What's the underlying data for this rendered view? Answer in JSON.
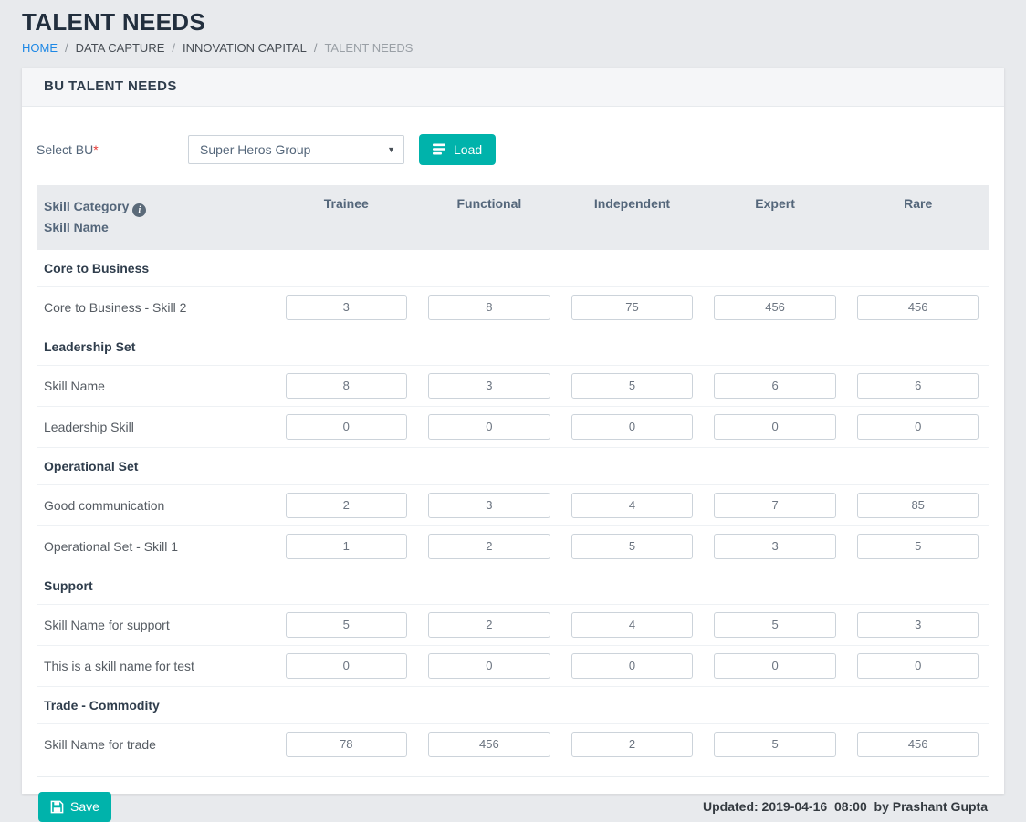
{
  "colors": {
    "accent": "#00b3ab",
    "link": "#1e88e5",
    "title": "#222f3e"
  },
  "page": {
    "title": "TALENT NEEDS",
    "breadcrumb": [
      "HOME",
      "DATA CAPTURE",
      "INNOVATION CAPITAL",
      "TALENT NEEDS"
    ]
  },
  "panel": {
    "title": "BU TALENT NEEDS"
  },
  "form": {
    "select_bu_label": "Select BU",
    "required_marker": "*",
    "selected_bu": "Super Heros Group",
    "load_button": "Load"
  },
  "table": {
    "first_column_header": {
      "line1": "Skill Category",
      "line2": "Skill Name"
    },
    "info_icon": "info-circle",
    "level_headers": [
      "Trainee",
      "Functional",
      "Independent",
      "Expert",
      "Rare"
    ],
    "groups": [
      {
        "category": "Core to Business",
        "skills": [
          {
            "name": "Core to Business - Skill 2",
            "values": [
              3,
              8,
              75,
              456,
              456
            ]
          }
        ]
      },
      {
        "category": "Leadership Set",
        "skills": [
          {
            "name": "Skill Name",
            "values": [
              8,
              3,
              5,
              6,
              6
            ]
          },
          {
            "name": "Leadership Skill",
            "values": [
              0,
              0,
              0,
              0,
              0
            ]
          }
        ]
      },
      {
        "category": "Operational Set",
        "skills": [
          {
            "name": "Good communication",
            "values": [
              2,
              3,
              4,
              7,
              85
            ]
          },
          {
            "name": "Operational Set - Skill 1",
            "values": [
              1,
              2,
              5,
              3,
              5
            ]
          }
        ]
      },
      {
        "category": "Support",
        "skills": [
          {
            "name": "Skill Name for support",
            "values": [
              5,
              2,
              4,
              5,
              3
            ]
          },
          {
            "name": "This is a skill name for test",
            "values": [
              0,
              0,
              0,
              0,
              0
            ]
          }
        ]
      },
      {
        "category": "Trade - Commodity",
        "skills": [
          {
            "name": "Skill Name for trade",
            "values": [
              78,
              456,
              2,
              5,
              456
            ]
          }
        ]
      }
    ]
  },
  "footer": {
    "save_button": "Save",
    "updated": "Updated: 2019-04-16  08:00  by Prashant Gupta"
  }
}
